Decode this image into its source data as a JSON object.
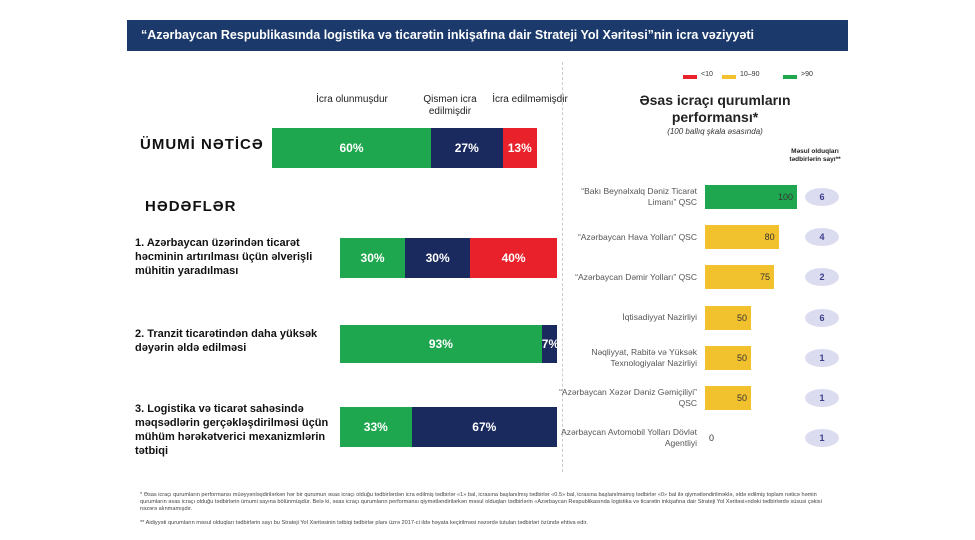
{
  "header": {
    "title": "“Azərbaycan Respublikasında logistika və ticarətin inkişafına dair Strateji Yol Xəritəsi”nin icra vəziyyəti"
  },
  "chart_data": [
    {
      "type": "stacked-barh",
      "section_title": "HƏDƏFLƏR",
      "categories": [
        "ÜMUMİ NƏTİCƏ",
        "1. Azərbaycan üzərindən ticarət həcminin artırılması üçün əlverişli mühitin yaradılması",
        "2. Tranzit ticarətindən daha yüksək dəyərin əldə edilməsi",
        "3. Logistika və ticarət sahəsində məqsədlərin gerçəkləşdirilməsi üçün mühüm hərəkətverici mexanizmlərin tətbiqi"
      ],
      "series": [
        {
          "name": "İcra olunmuşdur",
          "color": "#1fa74f",
          "values": [
            60,
            30,
            93,
            33
          ],
          "value_labels": [
            "60%",
            "30%",
            "93%",
            "33%"
          ]
        },
        {
          "name": "Qismən icra edilmişdir",
          "color": "#1b2a5e",
          "values": [
            27,
            30,
            7,
            67
          ],
          "value_labels": [
            "27%",
            "30%",
            "7%",
            "67%"
          ]
        },
        {
          "name": "İcra edilməmişdir",
          "color": "#e8212a",
          "values": [
            13,
            40,
            null,
            null
          ],
          "value_labels": [
            "13%",
            "40%",
            null,
            null
          ]
        }
      ],
      "xlim": [
        0,
        100
      ]
    },
    {
      "type": "barh",
      "title": "Əsas icraçı qurumların performansı*",
      "subtitle": "(100 ballıq şkala əsasında)",
      "legend": [
        {
          "name": "<10",
          "color": "#e8212a"
        },
        {
          "name": "10–90",
          "color": "#f2c12e"
        },
        {
          "name": ">90",
          "color": "#1fa74f"
        }
      ],
      "categories": [
        "“Bakı Beynəlxalq Dəniz Ticarət Limanı” QSC",
        "“Azərbaycan Hava Yolları” QSC",
        "“Azərbaycan Dəmir Yolları” QSC",
        "İqtisadiyyat Nazirliyi",
        "Nəqliyyat, Rabitə və Yüksək Texnologiyalar Nazirliyi",
        "“Azərbaycan Xəzər Dəniz Gəmiçiliyi” QSC",
        "Azərbaycan Avtomobil Yolları Dövlət Agentliyi"
      ],
      "values": [
        100,
        80,
        75,
        50,
        50,
        50,
        0
      ],
      "colors": [
        "#1fa74f",
        "#f2c12e",
        "#f2c12e",
        "#f2c12e",
        "#f2c12e",
        "#f2c12e",
        "#e8212a"
      ],
      "counts_title": "Məsul olduqları tədbirlərin sayı**",
      "counts": [
        6,
        4,
        2,
        6,
        1,
        1,
        1
      ],
      "xlim": [
        0,
        100
      ]
    }
  ],
  "footnotes": [
    "* Əsas icraçı qurumların performansı müəyyənləşdirilərkən hər bir qurumun əsas icraçı olduğu tədbirlərdən icra edilmiş tədbirlər «1» bal, icrasına başlanılmış tədbirlər «0.5» bal, icrasına başlanılmamış tədbirlər «0» bal ilə qiymətləndirilməklə, əldə edilmiş toplam nəticə həmin qurumların əsas icraçı olduğu tədbirlərin ümumi sayına bölünmüşdür. Belə ki, əsas icraçı qurumların performansı qiymətləndirilərkən məsul olduqları tədbirlərin «Azərbaycan Respublikasında logistika və ticarətin inkişafına dair Strateji Yol Xəritəsi»ndəki tədbirlərdə xüsusi çəkisi nəzərə alınmamışdır.",
    "** Aidiyyəti qurumların məsul olduqları tədbirlərin sayı bu Strateji Yol Xəritəsinin tətbiqi tədbirlər planı üzrə 2017-ci ildə həyata keçirilməsi nəzərdə tutulan tədbirləri özündə ehtiva edir."
  ]
}
